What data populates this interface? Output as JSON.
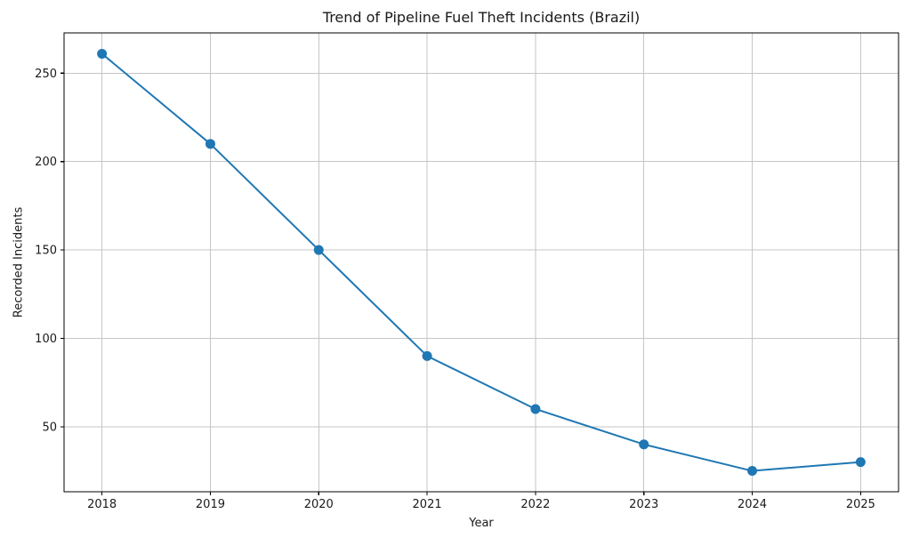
{
  "chart_data": {
    "type": "line",
    "title": "Trend of Pipeline Fuel Theft Incidents (Brazil)",
    "xlabel": "Year",
    "ylabel": "Recorded Incidents",
    "x": [
      2018,
      2019,
      2020,
      2021,
      2022,
      2023,
      2024,
      2025
    ],
    "series": [
      {
        "name": "Recorded Incidents",
        "values": [
          261,
          210,
          150,
          90,
          60,
          40,
          25,
          30
        ]
      }
    ],
    "xticks": [
      2018,
      2019,
      2020,
      2021,
      2022,
      2023,
      2024,
      2025
    ],
    "yticks": [
      50,
      100,
      150,
      200,
      250
    ],
    "xlim": [
      2017.65,
      2025.35
    ],
    "ylim": [
      13.2,
      272.8
    ],
    "grid": true,
    "legend": false,
    "marker": "circle",
    "colors": {
      "line": "#1f77b4",
      "marker": "#1f77b4",
      "grid": "#c6c6c6",
      "spine": "#000000",
      "tick": "#000000",
      "text": "#1a1a1a",
      "background": "#ffffff"
    }
  }
}
